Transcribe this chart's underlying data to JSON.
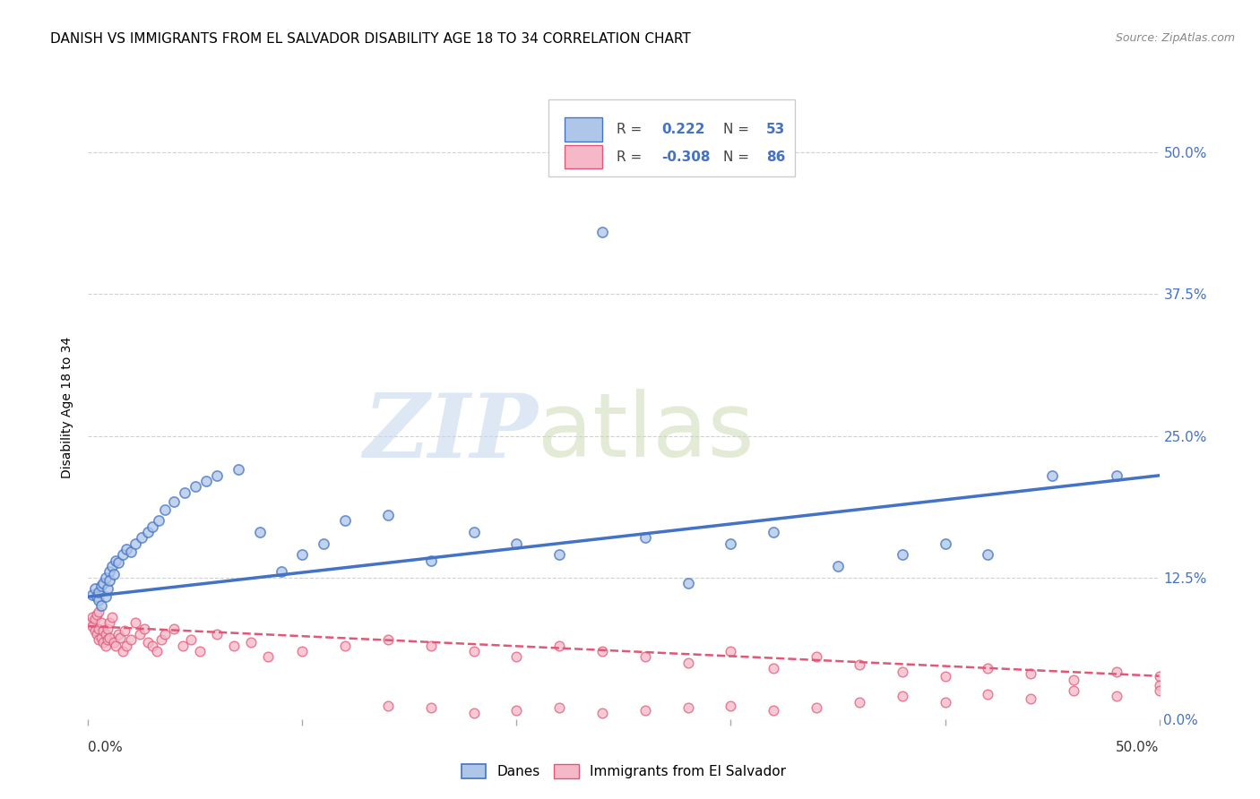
{
  "title": "DANISH VS IMMIGRANTS FROM EL SALVADOR DISABILITY AGE 18 TO 34 CORRELATION CHART",
  "source": "Source: ZipAtlas.com",
  "ylabel": "Disability Age 18 to 34",
  "ytick_values": [
    0.0,
    0.125,
    0.25,
    0.375,
    0.5
  ],
  "xlim": [
    0.0,
    0.5
  ],
  "ylim": [
    0.0,
    0.55
  ],
  "danes_color": "#aec6e8",
  "salvador_color": "#f4b8c8",
  "danes_line_color": "#4472c4",
  "salvador_line_color": "#e05878",
  "danes_scatter_x": [
    0.002,
    0.003,
    0.004,
    0.005,
    0.005,
    0.006,
    0.006,
    0.007,
    0.008,
    0.008,
    0.009,
    0.01,
    0.01,
    0.011,
    0.012,
    0.013,
    0.014,
    0.016,
    0.018,
    0.02,
    0.022,
    0.025,
    0.028,
    0.03,
    0.033,
    0.036,
    0.04,
    0.045,
    0.05,
    0.055,
    0.06,
    0.07,
    0.08,
    0.09,
    0.1,
    0.11,
    0.12,
    0.14,
    0.16,
    0.18,
    0.2,
    0.22,
    0.24,
    0.26,
    0.28,
    0.3,
    0.32,
    0.35,
    0.38,
    0.4,
    0.42,
    0.45,
    0.48
  ],
  "danes_scatter_y": [
    0.11,
    0.115,
    0.108,
    0.105,
    0.112,
    0.118,
    0.1,
    0.12,
    0.125,
    0.108,
    0.115,
    0.13,
    0.122,
    0.135,
    0.128,
    0.14,
    0.138,
    0.145,
    0.15,
    0.148,
    0.155,
    0.16,
    0.165,
    0.17,
    0.175,
    0.185,
    0.192,
    0.2,
    0.205,
    0.21,
    0.215,
    0.22,
    0.165,
    0.13,
    0.145,
    0.155,
    0.175,
    0.18,
    0.14,
    0.165,
    0.155,
    0.145,
    0.43,
    0.16,
    0.12,
    0.155,
    0.165,
    0.135,
    0.145,
    0.155,
    0.145,
    0.215,
    0.215
  ],
  "salvador_scatter_x": [
    0.001,
    0.002,
    0.002,
    0.003,
    0.003,
    0.004,
    0.004,
    0.005,
    0.005,
    0.005,
    0.006,
    0.006,
    0.007,
    0.007,
    0.008,
    0.008,
    0.009,
    0.009,
    0.01,
    0.01,
    0.011,
    0.012,
    0.013,
    0.014,
    0.015,
    0.016,
    0.017,
    0.018,
    0.02,
    0.022,
    0.024,
    0.026,
    0.028,
    0.03,
    0.032,
    0.034,
    0.036,
    0.04,
    0.044,
    0.048,
    0.052,
    0.06,
    0.068,
    0.076,
    0.084,
    0.1,
    0.12,
    0.14,
    0.16,
    0.18,
    0.2,
    0.22,
    0.24,
    0.26,
    0.28,
    0.3,
    0.32,
    0.34,
    0.36,
    0.38,
    0.4,
    0.42,
    0.44,
    0.46,
    0.48,
    0.5,
    0.5,
    0.5,
    0.48,
    0.46,
    0.44,
    0.42,
    0.4,
    0.38,
    0.36,
    0.34,
    0.32,
    0.3,
    0.28,
    0.26,
    0.24,
    0.22,
    0.2,
    0.18,
    0.16,
    0.14
  ],
  "salvador_scatter_y": [
    0.085,
    0.082,
    0.09,
    0.078,
    0.088,
    0.075,
    0.092,
    0.07,
    0.08,
    0.095,
    0.072,
    0.085,
    0.068,
    0.078,
    0.065,
    0.075,
    0.07,
    0.08,
    0.072,
    0.085,
    0.09,
    0.068,
    0.065,
    0.075,
    0.072,
    0.06,
    0.078,
    0.065,
    0.07,
    0.085,
    0.075,
    0.08,
    0.068,
    0.065,
    0.06,
    0.07,
    0.075,
    0.08,
    0.065,
    0.07,
    0.06,
    0.075,
    0.065,
    0.068,
    0.055,
    0.06,
    0.065,
    0.07,
    0.065,
    0.06,
    0.055,
    0.065,
    0.06,
    0.055,
    0.05,
    0.06,
    0.045,
    0.055,
    0.048,
    0.042,
    0.038,
    0.045,
    0.04,
    0.035,
    0.042,
    0.038,
    0.03,
    0.025,
    0.02,
    0.025,
    0.018,
    0.022,
    0.015,
    0.02,
    0.015,
    0.01,
    0.008,
    0.012,
    0.01,
    0.008,
    0.005,
    0.01,
    0.008,
    0.005,
    0.01,
    0.012
  ],
  "danes_trendline_x": [
    0.0,
    0.5
  ],
  "danes_trendline_y": [
    0.108,
    0.215
  ],
  "salvador_trendline_x": [
    0.0,
    0.5
  ],
  "salvador_trendline_y": [
    0.082,
    0.038
  ],
  "background_color": "#ffffff",
  "grid_color": "#cccccc",
  "title_fontsize": 11,
  "axis_label_fontsize": 10,
  "tick_fontsize": 11,
  "legend_fontsize": 11,
  "source_fontsize": 9
}
